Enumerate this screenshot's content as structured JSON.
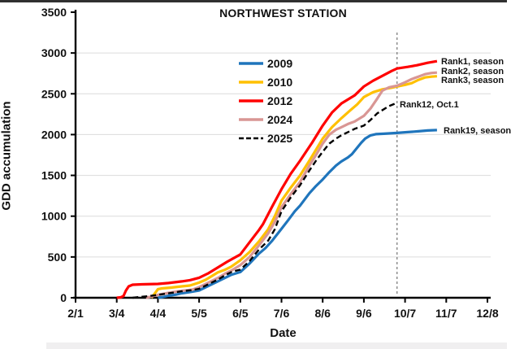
{
  "chart": {
    "title": "NORTHWEST STATION",
    "xlabel": "Date",
    "ylabel": "GDD accumulation"
  },
  "chart_data": {
    "type": "line",
    "title": "NORTHWEST STATION",
    "xlabel": "Date",
    "ylabel": "GDD accumulation",
    "ylim": [
      0,
      3500
    ],
    "x_unit": "days since 2/1, tick spacing 31 days",
    "x_ticks": {
      "labels": [
        "2/1",
        "3/4",
        "4/4",
        "5/5",
        "6/5",
        "7/6",
        "8/6",
        "9/6",
        "10/7",
        "11/7",
        "12/8"
      ],
      "days": [
        0,
        31,
        62,
        93,
        124,
        155,
        186,
        217,
        248,
        279,
        310
      ]
    },
    "y_ticks": [
      0,
      500,
      1000,
      1500,
      2000,
      2500,
      3000,
      3500
    ],
    "gridline_values": [
      500,
      1000,
      1500,
      2000,
      2500,
      3000
    ],
    "grid": "light horizontal gridlines",
    "legend_position": "upper-center-left inside plot",
    "reference_line": {
      "x_day": 242,
      "date": "Oct 1",
      "style": "vertical dashed gray"
    },
    "series": [
      {
        "name": "2009",
        "color": "#1F75BC",
        "dashed": false,
        "end_label": "Rank19, season",
        "points": [
          [
            62,
            0
          ],
          [
            66,
            10
          ],
          [
            70,
            25
          ],
          [
            76,
            40
          ],
          [
            80,
            55
          ],
          [
            86,
            70
          ],
          [
            93,
            90
          ],
          [
            98,
            130
          ],
          [
            103,
            170
          ],
          [
            107,
            200
          ],
          [
            112,
            240
          ],
          [
            117,
            280
          ],
          [
            124,
            315
          ],
          [
            131,
            420
          ],
          [
            138,
            540
          ],
          [
            143,
            610
          ],
          [
            148,
            700
          ],
          [
            155,
            845
          ],
          [
            160,
            950
          ],
          [
            165,
            1060
          ],
          [
            169,
            1130
          ],
          [
            176,
            1280
          ],
          [
            181,
            1370
          ],
          [
            186,
            1450
          ],
          [
            191,
            1540
          ],
          [
            196,
            1620
          ],
          [
            200,
            1670
          ],
          [
            205,
            1720
          ],
          [
            208,
            1760
          ],
          [
            212,
            1840
          ],
          [
            215,
            1900
          ],
          [
            218,
            1950
          ],
          [
            222,
            1990
          ],
          [
            226,
            2005
          ],
          [
            232,
            2010
          ],
          [
            242,
            2020
          ],
          [
            250,
            2030
          ],
          [
            258,
            2040
          ],
          [
            265,
            2050
          ],
          [
            272,
            2055
          ]
        ]
      },
      {
        "name": "2010",
        "color": "#FFC000",
        "dashed": false,
        "end_label": "Rank3, season",
        "points": [
          [
            57,
            0
          ],
          [
            60,
            60
          ],
          [
            62,
            105
          ],
          [
            65,
            115
          ],
          [
            72,
            125
          ],
          [
            80,
            140
          ],
          [
            86,
            150
          ],
          [
            93,
            185
          ],
          [
            98,
            220
          ],
          [
            103,
            270
          ],
          [
            107,
            310
          ],
          [
            112,
            340
          ],
          [
            117,
            380
          ],
          [
            124,
            460
          ],
          [
            131,
            560
          ],
          [
            138,
            690
          ],
          [
            145,
            840
          ],
          [
            150,
            1000
          ],
          [
            155,
            1190
          ],
          [
            162,
            1350
          ],
          [
            169,
            1500
          ],
          [
            176,
            1680
          ],
          [
            186,
            1950
          ],
          [
            193,
            2090
          ],
          [
            200,
            2200
          ],
          [
            207,
            2300
          ],
          [
            212,
            2370
          ],
          [
            217,
            2460
          ],
          [
            224,
            2520
          ],
          [
            231,
            2555
          ],
          [
            238,
            2575
          ],
          [
            242,
            2590
          ],
          [
            248,
            2610
          ],
          [
            253,
            2630
          ],
          [
            258,
            2670
          ],
          [
            263,
            2700
          ],
          [
            268,
            2710
          ],
          [
            272,
            2715
          ]
        ]
      },
      {
        "name": "2012",
        "color": "#FF0000",
        "dashed": false,
        "end_label": "Rank1, season",
        "points": [
          [
            31,
            0
          ],
          [
            34,
            5
          ],
          [
            36,
            20
          ],
          [
            38,
            90
          ],
          [
            40,
            140
          ],
          [
            43,
            160
          ],
          [
            50,
            165
          ],
          [
            62,
            170
          ],
          [
            70,
            180
          ],
          [
            80,
            200
          ],
          [
            86,
            215
          ],
          [
            93,
            245
          ],
          [
            100,
            300
          ],
          [
            107,
            370
          ],
          [
            114,
            440
          ],
          [
            124,
            530
          ],
          [
            131,
            680
          ],
          [
            138,
            830
          ],
          [
            141,
            900
          ],
          [
            148,
            1120
          ],
          [
            155,
            1330
          ],
          [
            162,
            1520
          ],
          [
            169,
            1680
          ],
          [
            178,
            1900
          ],
          [
            186,
            2110
          ],
          [
            193,
            2270
          ],
          [
            200,
            2380
          ],
          [
            210,
            2480
          ],
          [
            217,
            2590
          ],
          [
            224,
            2660
          ],
          [
            231,
            2720
          ],
          [
            238,
            2780
          ],
          [
            242,
            2810
          ],
          [
            250,
            2830
          ],
          [
            257,
            2850
          ],
          [
            265,
            2880
          ],
          [
            272,
            2900
          ]
        ]
      },
      {
        "name": "2024",
        "color": "#D99694",
        "dashed": false,
        "end_label": "Rank2, season",
        "points": [
          [
            53,
            0
          ],
          [
            56,
            10
          ],
          [
            62,
            35
          ],
          [
            70,
            60
          ],
          [
            80,
            85
          ],
          [
            88,
            100
          ],
          [
            93,
            130
          ],
          [
            98,
            170
          ],
          [
            103,
            210
          ],
          [
            108,
            250
          ],
          [
            113,
            300
          ],
          [
            118,
            340
          ],
          [
            124,
            400
          ],
          [
            131,
            500
          ],
          [
            138,
            640
          ],
          [
            145,
            790
          ],
          [
            150,
            930
          ],
          [
            155,
            1110
          ],
          [
            162,
            1270
          ],
          [
            169,
            1420
          ],
          [
            176,
            1620
          ],
          [
            181,
            1750
          ],
          [
            186,
            1890
          ],
          [
            191,
            2000
          ],
          [
            196,
            2060
          ],
          [
            200,
            2090
          ],
          [
            205,
            2130
          ],
          [
            210,
            2160
          ],
          [
            217,
            2230
          ],
          [
            222,
            2320
          ],
          [
            227,
            2440
          ],
          [
            231,
            2540
          ],
          [
            236,
            2580
          ],
          [
            242,
            2600
          ],
          [
            248,
            2640
          ],
          [
            253,
            2680
          ],
          [
            258,
            2710
          ],
          [
            263,
            2740
          ],
          [
            268,
            2755
          ],
          [
            272,
            2760
          ]
        ]
      },
      {
        "name": "2025",
        "color": "#000000",
        "dashed": true,
        "end_label": "Rank12, Oct.1",
        "points": [
          [
            43,
            0
          ],
          [
            48,
            10
          ],
          [
            55,
            20
          ],
          [
            62,
            35
          ],
          [
            70,
            55
          ],
          [
            80,
            80
          ],
          [
            88,
            95
          ],
          [
            93,
            110
          ],
          [
            98,
            150
          ],
          [
            103,
            190
          ],
          [
            108,
            230
          ],
          [
            113,
            280
          ],
          [
            118,
            320
          ],
          [
            124,
            345
          ],
          [
            131,
            450
          ],
          [
            138,
            590
          ],
          [
            145,
            700
          ],
          [
            150,
            840
          ],
          [
            155,
            1060
          ],
          [
            162,
            1230
          ],
          [
            169,
            1380
          ],
          [
            176,
            1560
          ],
          [
            181,
            1680
          ],
          [
            186,
            1790
          ],
          [
            191,
            1890
          ],
          [
            196,
            1950
          ],
          [
            200,
            1990
          ],
          [
            205,
            2030
          ],
          [
            210,
            2070
          ],
          [
            217,
            2110
          ],
          [
            222,
            2180
          ],
          [
            227,
            2260
          ],
          [
            231,
            2300
          ],
          [
            236,
            2350
          ],
          [
            242,
            2390
          ]
        ]
      }
    ],
    "annotations": [
      {
        "text": "Rank1, season",
        "x_day": 275,
        "y_value": 2890
      },
      {
        "text": "Rank2, season",
        "x_day": 275,
        "y_value": 2770
      },
      {
        "text": "Rank3, season",
        "x_day": 275,
        "y_value": 2665
      },
      {
        "text": "Rank12, Oct.1",
        "x_day": 244,
        "y_value": 2365
      },
      {
        "text": "Rank19, season",
        "x_day": 277,
        "y_value": 2040
      }
    ]
  }
}
